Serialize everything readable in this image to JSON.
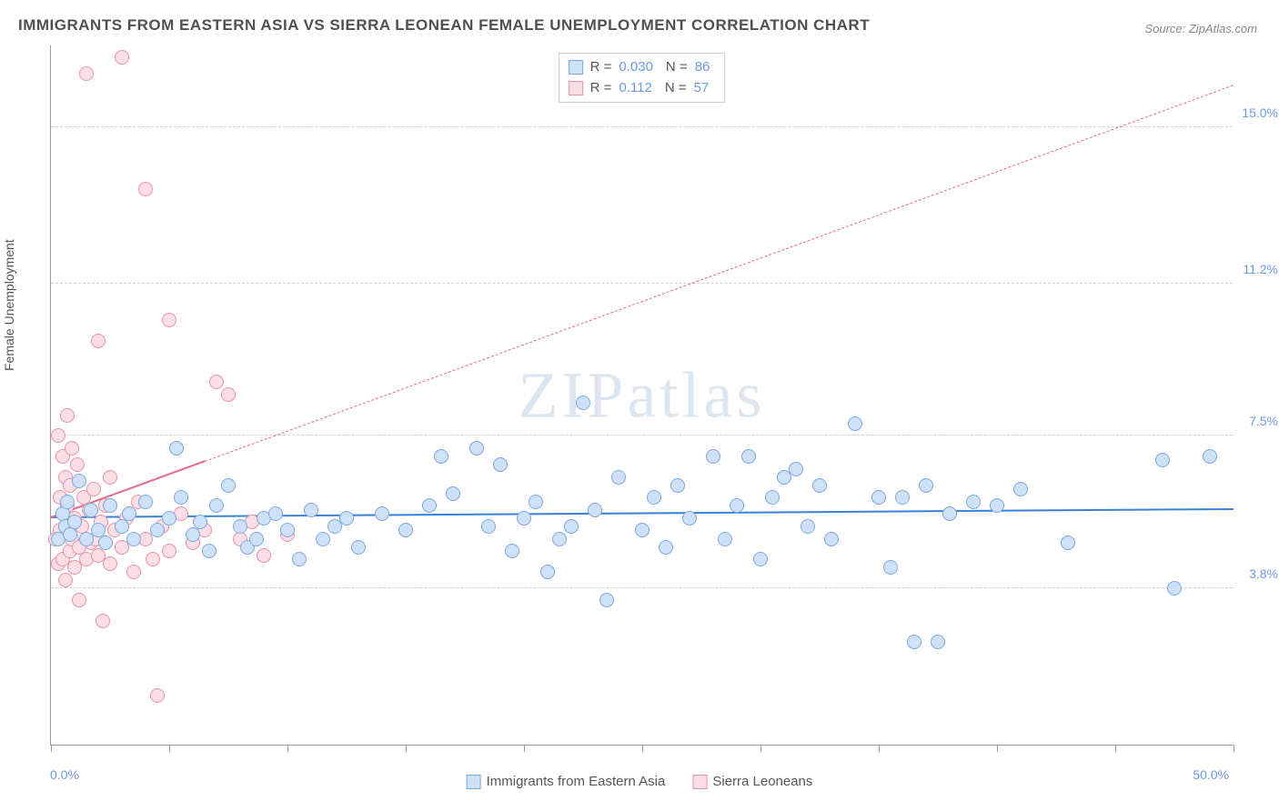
{
  "title": "IMMIGRANTS FROM EASTERN ASIA VS SIERRA LEONEAN FEMALE UNEMPLOYMENT CORRELATION CHART",
  "source": "Source: ZipAtlas.com",
  "watermark": "ZIPatlas",
  "chart": {
    "type": "scatter",
    "y_axis_label": "Female Unemployment",
    "xlim": [
      0,
      50
    ],
    "ylim": [
      0,
      17
    ],
    "x_ticks": [
      0,
      5,
      10,
      15,
      20,
      25,
      30,
      35,
      40,
      45,
      50
    ],
    "x_tick_labels_shown": {
      "0": "0.0%",
      "50": "50.0%"
    },
    "y_gridlines": [
      3.8,
      7.5,
      11.2,
      15.0
    ],
    "y_tick_labels": [
      "3.8%",
      "7.5%",
      "11.2%",
      "15.0%"
    ],
    "background_color": "#ffffff",
    "grid_color": "#d0d0d0",
    "axis_color": "#999999",
    "marker_radius": 8,
    "marker_stroke_width": 1.5,
    "series": [
      {
        "name": "Immigrants from Eastern Asia",
        "fill": "#cfe1f7",
        "stroke": "#7ba8df",
        "R": "0.030",
        "N": "86",
        "trend": {
          "y_start": 5.5,
          "y_end": 5.7,
          "color": "#3b82d6",
          "width": 2.5,
          "dash": false
        },
        "points": [
          [
            0.3,
            5.0
          ],
          [
            0.5,
            5.6
          ],
          [
            0.6,
            5.3
          ],
          [
            0.7,
            5.9
          ],
          [
            0.8,
            5.1
          ],
          [
            1.0,
            5.4
          ],
          [
            1.2,
            6.4
          ],
          [
            1.5,
            5.0
          ],
          [
            1.7,
            5.7
          ],
          [
            2.0,
            5.2
          ],
          [
            2.3,
            4.9
          ],
          [
            2.5,
            5.8
          ],
          [
            3.0,
            5.3
          ],
          [
            3.3,
            5.6
          ],
          [
            3.5,
            5.0
          ],
          [
            4.0,
            5.9
          ],
          [
            4.5,
            5.2
          ],
          [
            5.0,
            5.5
          ],
          [
            5.3,
            7.2
          ],
          [
            5.5,
            6.0
          ],
          [
            6.0,
            5.1
          ],
          [
            6.3,
            5.4
          ],
          [
            6.7,
            4.7
          ],
          [
            7.0,
            5.8
          ],
          [
            7.5,
            6.3
          ],
          [
            8.0,
            5.3
          ],
          [
            8.3,
            4.8
          ],
          [
            8.7,
            5.0
          ],
          [
            9.0,
            5.5
          ],
          [
            9.5,
            5.6
          ],
          [
            10.0,
            5.2
          ],
          [
            10.5,
            4.5
          ],
          [
            11.0,
            5.7
          ],
          [
            11.5,
            5.0
          ],
          [
            12.0,
            5.3
          ],
          [
            12.5,
            5.5
          ],
          [
            13.0,
            4.8
          ],
          [
            14.0,
            5.6
          ],
          [
            15.0,
            5.2
          ],
          [
            16.0,
            5.8
          ],
          [
            16.5,
            7.0
          ],
          [
            17.0,
            6.1
          ],
          [
            18.0,
            7.2
          ],
          [
            18.5,
            5.3
          ],
          [
            19.0,
            6.8
          ],
          [
            19.5,
            4.7
          ],
          [
            20.0,
            5.5
          ],
          [
            20.5,
            5.9
          ],
          [
            21.0,
            4.2
          ],
          [
            21.5,
            5.0
          ],
          [
            22.0,
            5.3
          ],
          [
            22.5,
            8.3
          ],
          [
            23.0,
            5.7
          ],
          [
            23.5,
            3.5
          ],
          [
            24.0,
            6.5
          ],
          [
            25.0,
            5.2
          ],
          [
            25.5,
            6.0
          ],
          [
            26.0,
            4.8
          ],
          [
            26.5,
            6.3
          ],
          [
            27.0,
            5.5
          ],
          [
            28.0,
            7.0
          ],
          [
            28.5,
            5.0
          ],
          [
            29.0,
            5.8
          ],
          [
            29.5,
            7.0
          ],
          [
            30.0,
            4.5
          ],
          [
            30.5,
            6.0
          ],
          [
            31.0,
            6.5
          ],
          [
            31.5,
            6.7
          ],
          [
            32.0,
            5.3
          ],
          [
            32.5,
            6.3
          ],
          [
            33.0,
            5.0
          ],
          [
            34.0,
            7.8
          ],
          [
            35.0,
            6.0
          ],
          [
            35.5,
            4.3
          ],
          [
            36.0,
            6.0
          ],
          [
            36.5,
            2.5
          ],
          [
            37.0,
            6.3
          ],
          [
            37.5,
            2.5
          ],
          [
            38.0,
            5.6
          ],
          [
            39.0,
            5.9
          ],
          [
            40.0,
            5.8
          ],
          [
            41.0,
            6.2
          ],
          [
            43.0,
            4.9
          ],
          [
            47.0,
            6.9
          ],
          [
            47.5,
            3.8
          ],
          [
            49.0,
            7.0
          ]
        ]
      },
      {
        "name": "Sierra Leoneans",
        "fill": "#fbdee6",
        "stroke": "#e892a9",
        "R": "0.112",
        "N": "57",
        "trend": {
          "y_start": 5.5,
          "y_end": 16.0,
          "color": "#e36a8a",
          "width": 2,
          "dash": true,
          "solid_until_x": 6.5
        },
        "points": [
          [
            0.2,
            5.0
          ],
          [
            0.3,
            7.5
          ],
          [
            0.3,
            4.4
          ],
          [
            0.4,
            6.0
          ],
          [
            0.4,
            5.2
          ],
          [
            0.5,
            7.0
          ],
          [
            0.5,
            4.5
          ],
          [
            0.6,
            6.5
          ],
          [
            0.6,
            4.0
          ],
          [
            0.7,
            5.8
          ],
          [
            0.7,
            8.0
          ],
          [
            0.8,
            4.7
          ],
          [
            0.8,
            6.3
          ],
          [
            0.9,
            5.0
          ],
          [
            0.9,
            7.2
          ],
          [
            1.0,
            4.3
          ],
          [
            1.0,
            5.5
          ],
          [
            1.1,
            6.8
          ],
          [
            1.2,
            4.8
          ],
          [
            1.2,
            3.5
          ],
          [
            1.3,
            5.3
          ],
          [
            1.4,
            6.0
          ],
          [
            1.5,
            4.5
          ],
          [
            1.5,
            16.3
          ],
          [
            1.6,
            5.7
          ],
          [
            1.7,
            4.9
          ],
          [
            1.8,
            6.2
          ],
          [
            1.9,
            5.0
          ],
          [
            2.0,
            9.8
          ],
          [
            2.0,
            4.6
          ],
          [
            2.1,
            5.4
          ],
          [
            2.2,
            3.0
          ],
          [
            2.3,
            5.8
          ],
          [
            2.5,
            4.4
          ],
          [
            2.5,
            6.5
          ],
          [
            2.7,
            5.2
          ],
          [
            3.0,
            16.7
          ],
          [
            3.0,
            4.8
          ],
          [
            3.2,
            5.5
          ],
          [
            3.5,
            4.2
          ],
          [
            3.7,
            5.9
          ],
          [
            4.0,
            13.5
          ],
          [
            4.0,
            5.0
          ],
          [
            4.3,
            4.5
          ],
          [
            4.5,
            1.2
          ],
          [
            4.7,
            5.3
          ],
          [
            5.0,
            4.7
          ],
          [
            5.0,
            10.3
          ],
          [
            5.5,
            5.6
          ],
          [
            6.0,
            4.9
          ],
          [
            6.5,
            5.2
          ],
          [
            7.0,
            8.8
          ],
          [
            7.5,
            8.5
          ],
          [
            8.0,
            5.0
          ],
          [
            8.5,
            5.4
          ],
          [
            9.0,
            4.6
          ],
          [
            10.0,
            5.1
          ]
        ]
      }
    ]
  },
  "legend_bottom": [
    "Immigrants from Eastern Asia",
    "Sierra Leoneans"
  ]
}
